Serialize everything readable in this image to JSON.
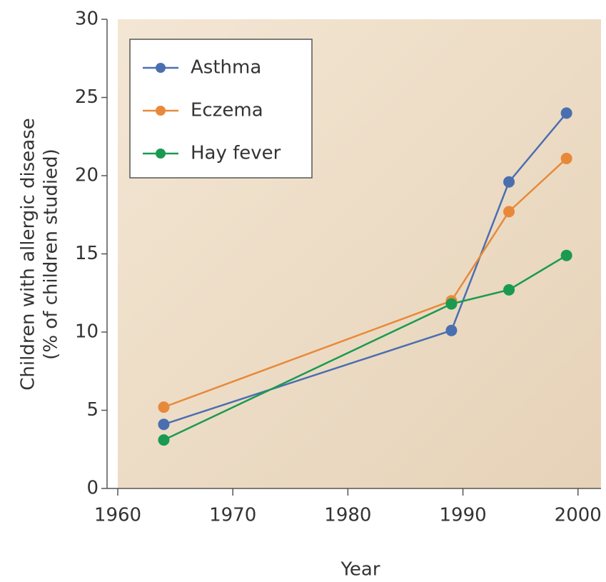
{
  "chart_data": {
    "type": "line",
    "x_label": "Year",
    "y_label": [
      "Children with allergic disease",
      "(% of children studied)"
    ],
    "x": [
      1964,
      1989,
      1994,
      1999
    ],
    "series": [
      {
        "name": "Asthma",
        "color": "#4a6fb0",
        "values": [
          4.1,
          10.1,
          19.6,
          24.0
        ]
      },
      {
        "name": "Eczema",
        "color": "#e8893a",
        "values": [
          5.2,
          12.0,
          17.7,
          21.1
        ]
      },
      {
        "name": "Hay fever",
        "color": "#1a9a50",
        "values": [
          3.1,
          11.8,
          12.7,
          14.9
        ]
      }
    ],
    "xlim": [
      1960,
      2002
    ],
    "xticks": [
      1960,
      1970,
      1980,
      1990,
      2000
    ],
    "ylim": [
      0,
      30
    ],
    "yticks": [
      0,
      5,
      10,
      15,
      20,
      25,
      30
    ],
    "legend": "upper left"
  }
}
